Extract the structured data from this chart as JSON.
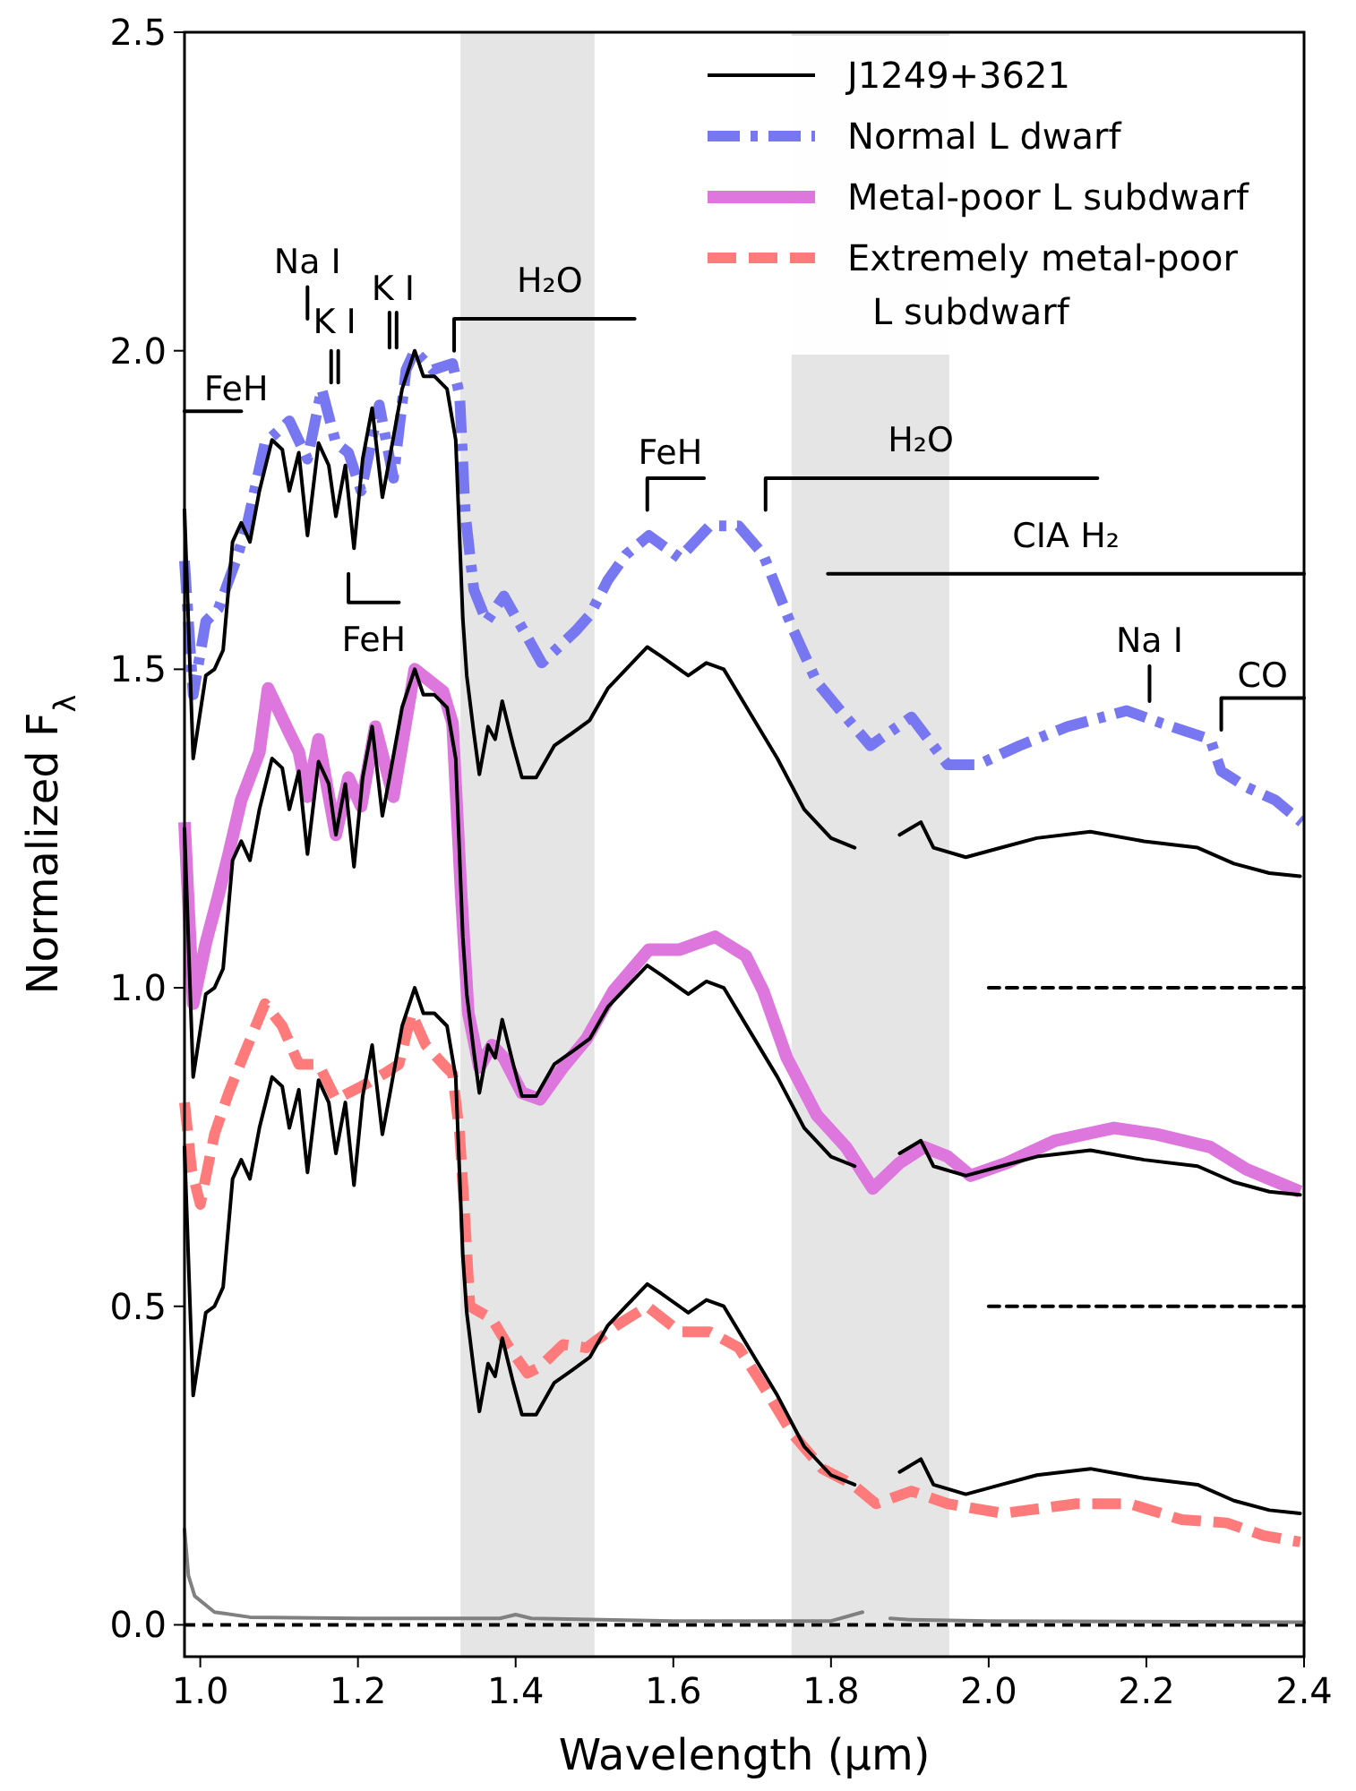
{
  "chart_data": {
    "type": "line",
    "xlabel": "Wavelength (μm)",
    "ylabel": "Normalized F$_{λ}$",
    "xlim": [
      0.98,
      2.4
    ],
    "ylim": [
      -0.05,
      2.5
    ],
    "xticks": [
      {
        "value": 1.0,
        "label": "1.0"
      },
      {
        "value": 1.2,
        "label": "1.2"
      },
      {
        "value": 1.4,
        "label": "1.4"
      },
      {
        "value": 1.6,
        "label": "1.6"
      },
      {
        "value": 1.8,
        "label": "1.8"
      },
      {
        "value": 2.0,
        "label": "2.0"
      },
      {
        "value": 2.2,
        "label": "2.2"
      },
      {
        "value": 2.4,
        "label": "2.4"
      }
    ],
    "yticks": [
      {
        "value": 0,
        "label": "0.0"
      },
      {
        "value": 0.5,
        "label": "0.5"
      },
      {
        "value": 1.0,
        "label": "1.0"
      },
      {
        "value": 1.5,
        "label": "1.5"
      },
      {
        "value": 2.0,
        "label": "2.0"
      },
      {
        "value": 2.5,
        "label": "2.5"
      }
    ],
    "grid": false,
    "legend": "top right",
    "line_style": "solid",
    "bands": [
      {
        "axis": "x",
        "from": 1.33,
        "to": 1.5,
        "color": "#e5e5e5"
      },
      {
        "axis": "x",
        "from": 1.75,
        "to": 1.95,
        "color": "#e5e5e5"
      }
    ],
    "ref_lines": [
      {
        "axis": "y",
        "value": 0,
        "color": "#000000",
        "line_style": "dashed"
      }
    ],
    "annotations": [
      "FeH",
      "Na I",
      "K I",
      "K I",
      "FeH",
      "H₂O",
      "FeH",
      "H₂O",
      "CIA H₂",
      "Na I",
      "CO"
    ],
    "series": [
      {
        "name": "J1249+3621",
        "color": "#000000",
        "x": [
          0.98,
          0.991,
          1.007,
          1.018,
          1.029,
          1.041,
          1.052,
          1.063,
          1.075,
          1.091,
          1.104,
          1.113,
          1.125,
          1.136,
          1.15,
          1.163,
          1.172,
          1.184,
          1.195,
          1.206,
          1.218,
          1.231,
          1.24,
          1.256,
          1.272,
          1.283,
          1.297,
          1.313,
          1.324,
          1.333,
          1.338,
          1.347,
          1.354,
          1.365,
          1.374,
          1.383,
          1.397,
          1.408,
          1.426,
          1.449,
          1.472,
          1.494,
          1.517,
          1.54,
          1.567,
          1.585,
          1.619,
          1.642,
          1.664,
          1.698,
          1.732,
          1.766,
          1.8,
          1.83,
          1.857,
          1.887,
          1.914,
          1.93,
          1.971,
          2.016,
          2.061,
          2.129,
          2.197,
          2.265,
          2.311,
          2.356,
          2.395
        ],
        "values": [
          1.75,
          1.36,
          1.49,
          1.5,
          1.53,
          1.7,
          1.73,
          1.7,
          1.78,
          1.86,
          1.845,
          1.78,
          1.84,
          1.71,
          1.855,
          1.82,
          1.74,
          1.82,
          1.69,
          1.83,
          1.91,
          1.77,
          1.83,
          1.94,
          2.0,
          1.96,
          1.96,
          1.94,
          1.86,
          1.58,
          1.49,
          1.4,
          1.335,
          1.41,
          1.39,
          1.45,
          1.38,
          1.33,
          1.33,
          1.38,
          1.4,
          1.42,
          1.47,
          1.5,
          1.535,
          1.52,
          1.49,
          1.51,
          1.5,
          1.43,
          1.36,
          1.28,
          1.235,
          1.22,
          null,
          1.24,
          1.26,
          1.22,
          1.205,
          1.22,
          1.235,
          1.245,
          1.23,
          1.22,
          1.195,
          1.18,
          1.175
        ]
      },
      {
        "name": "Normal L dwarf",
        "color": "#7777f2",
        "line_style": "dashdot",
        "x": [
          0.98,
          0.991,
          1.007,
          1.023,
          1.045,
          1.059,
          1.082,
          1.113,
          1.136,
          1.154,
          1.172,
          1.188,
          1.204,
          1.227,
          1.245,
          1.261,
          1.272,
          1.295,
          1.32,
          1.329,
          1.336,
          1.347,
          1.363,
          1.385,
          1.415,
          1.433,
          1.476,
          1.494,
          1.517,
          1.54,
          1.569,
          1.608,
          1.646,
          1.683,
          1.714,
          1.751,
          1.782,
          1.812,
          1.85,
          1.873,
          1.902,
          1.948,
          1.986,
          2.039,
          2.1,
          2.175,
          2.22,
          2.281,
          2.295,
          2.327,
          2.363,
          2.397
        ],
        "values": [
          1.67,
          1.46,
          1.575,
          1.595,
          1.67,
          1.725,
          1.855,
          1.89,
          1.83,
          1.94,
          1.855,
          1.84,
          1.78,
          1.915,
          1.8,
          1.97,
          2.0,
          1.97,
          1.98,
          1.93,
          1.745,
          1.625,
          1.575,
          1.615,
          1.55,
          1.51,
          1.56,
          1.585,
          1.64,
          1.68,
          1.71,
          1.675,
          1.725,
          1.725,
          1.68,
          1.565,
          1.48,
          1.435,
          1.38,
          1.4,
          1.425,
          1.35,
          1.35,
          1.38,
          1.41,
          1.435,
          1.415,
          1.39,
          1.34,
          1.315,
          1.295,
          1.26
        ]
      },
      {
        "name": "Metal-poor L subdwarf",
        "color": "#dd77dd",
        "x": [
          0.98,
          0.991,
          1.007,
          1.023,
          1.036,
          1.052,
          1.075,
          1.086,
          1.113,
          1.125,
          1.136,
          1.15,
          1.172,
          1.188,
          1.204,
          1.222,
          1.245,
          1.272,
          1.308,
          1.32,
          1.331,
          1.34,
          1.354,
          1.37,
          1.385,
          1.408,
          1.431,
          1.46,
          1.49,
          1.524,
          1.569,
          1.608,
          1.653,
          1.692,
          1.714,
          1.744,
          1.782,
          1.819,
          1.853,
          1.887,
          1.918,
          1.948,
          1.977,
          2.023,
          2.084,
          2.159,
          2.213,
          2.281,
          2.327,
          2.395
        ],
        "values": [
          1.26,
          0.975,
          1.07,
          1.145,
          1.21,
          1.295,
          1.37,
          1.47,
          1.4,
          1.37,
          1.3,
          1.39,
          1.24,
          1.33,
          1.285,
          1.41,
          1.3,
          1.5,
          1.465,
          1.415,
          1.145,
          0.96,
          0.875,
          0.91,
          0.89,
          0.835,
          0.825,
          0.875,
          0.92,
          0.995,
          1.06,
          1.06,
          1.08,
          1.05,
          0.995,
          0.89,
          0.8,
          0.75,
          0.685,
          0.725,
          0.75,
          0.735,
          0.705,
          0.725,
          0.76,
          0.78,
          0.77,
          0.75,
          0.715,
          0.68
        ]
      },
      {
        "name": "Extremely metal-poor\nL subdwarf",
        "color": "#ff7b7b",
        "line_style": "dashed",
        "x": [
          0.98,
          0.989,
          1.0,
          1.018,
          1.036,
          1.057,
          1.082,
          1.104,
          1.125,
          1.15,
          1.172,
          1.204,
          1.233,
          1.252,
          1.268,
          1.286,
          1.308,
          1.32,
          1.329,
          1.336,
          1.342,
          1.37,
          1.392,
          1.415,
          1.431,
          1.46,
          1.49,
          1.528,
          1.567,
          1.608,
          1.646,
          1.683,
          1.714,
          1.751,
          1.789,
          1.828,
          1.857,
          1.902,
          1.948,
          2.018,
          2.111,
          2.179,
          2.245,
          2.302,
          2.349,
          2.395
        ],
        "values": [
          0.82,
          0.715,
          0.66,
          0.77,
          0.835,
          0.9,
          0.975,
          0.94,
          0.88,
          0.88,
          0.825,
          0.845,
          0.865,
          0.88,
          0.96,
          0.91,
          0.88,
          0.865,
          0.77,
          0.63,
          0.5,
          0.48,
          0.435,
          0.395,
          0.405,
          0.44,
          0.435,
          0.47,
          0.5,
          0.46,
          0.46,
          0.435,
          0.375,
          0.3,
          0.245,
          0.22,
          0.19,
          0.21,
          0.19,
          0.175,
          0.19,
          0.19,
          0.165,
          0.16,
          0.14,
          0.13
        ]
      },
      {
        "color": "#000000",
        "x": [
          0.98,
          0.991,
          1.007,
          1.018,
          1.029,
          1.041,
          1.052,
          1.063,
          1.075,
          1.091,
          1.104,
          1.113,
          1.125,
          1.136,
          1.15,
          1.163,
          1.172,
          1.184,
          1.195,
          1.206,
          1.218,
          1.231,
          1.24,
          1.256,
          1.272,
          1.283,
          1.297,
          1.313,
          1.324,
          1.333,
          1.338,
          1.347,
          1.354,
          1.365,
          1.374,
          1.383,
          1.397,
          1.408,
          1.426,
          1.449,
          1.472,
          1.494,
          1.517,
          1.54,
          1.567,
          1.585,
          1.619,
          1.642,
          1.664,
          1.698,
          1.732,
          1.766,
          1.8,
          1.83,
          1.857,
          1.887,
          1.914,
          1.93,
          1.971,
          2.016,
          2.061,
          2.129,
          2.197,
          2.265,
          2.311,
          2.356,
          2.395
        ],
        "values": [
          1.25,
          0.86,
          0.99,
          1.0,
          1.03,
          1.2,
          1.23,
          1.2,
          1.28,
          1.36,
          1.345,
          1.28,
          1.34,
          1.21,
          1.355,
          1.32,
          1.24,
          1.32,
          1.19,
          1.33,
          1.41,
          1.27,
          1.33,
          1.44,
          1.5,
          1.46,
          1.46,
          1.44,
          1.36,
          1.08,
          0.99,
          0.9,
          0.835,
          0.91,
          0.89,
          0.95,
          0.88,
          0.83,
          0.83,
          0.88,
          0.9,
          0.92,
          0.97,
          1.0,
          1.035,
          1.02,
          0.99,
          1.01,
          1.0,
          0.93,
          0.86,
          0.78,
          0.735,
          0.72,
          null,
          0.74,
          0.76,
          0.72,
          0.705,
          0.72,
          0.735,
          0.745,
          0.73,
          0.72,
          0.695,
          0.68,
          0.675
        ]
      },
      {
        "color": "#000000",
        "x": [
          0.98,
          0.991,
          1.007,
          1.018,
          1.029,
          1.041,
          1.052,
          1.063,
          1.075,
          1.091,
          1.104,
          1.113,
          1.125,
          1.136,
          1.15,
          1.163,
          1.172,
          1.184,
          1.195,
          1.206,
          1.218,
          1.231,
          1.24,
          1.256,
          1.272,
          1.283,
          1.297,
          1.313,
          1.324,
          1.333,
          1.338,
          1.347,
          1.354,
          1.365,
          1.374,
          1.383,
          1.397,
          1.408,
          1.426,
          1.449,
          1.472,
          1.494,
          1.517,
          1.54,
          1.567,
          1.585,
          1.619,
          1.642,
          1.664,
          1.698,
          1.732,
          1.766,
          1.8,
          1.83,
          1.857,
          1.887,
          1.914,
          1.93,
          1.971,
          2.016,
          2.061,
          2.129,
          2.197,
          2.265,
          2.311,
          2.356,
          2.395
        ],
        "values": [
          0.75,
          0.36,
          0.49,
          0.5,
          0.53,
          0.7,
          0.73,
          0.7,
          0.78,
          0.86,
          0.845,
          0.78,
          0.84,
          0.71,
          0.855,
          0.82,
          0.74,
          0.82,
          0.69,
          0.83,
          0.91,
          0.77,
          0.83,
          0.94,
          1.0,
          0.96,
          0.96,
          0.94,
          0.86,
          0.58,
          0.49,
          0.4,
          0.335,
          0.41,
          0.39,
          0.45,
          0.38,
          0.33,
          0.33,
          0.38,
          0.4,
          0.42,
          0.47,
          0.5,
          0.535,
          0.52,
          0.49,
          0.51,
          0.5,
          0.43,
          0.36,
          0.28,
          0.235,
          0.22,
          null,
          0.24,
          0.26,
          0.22,
          0.205,
          0.22,
          0.235,
          0.245,
          0.23,
          0.22,
          0.195,
          0.18,
          0.175
        ]
      },
      {
        "color": "#808080",
        "x": [
          0.98,
          0.985,
          0.993,
          1.018,
          1.063,
          1.2,
          1.38,
          1.4,
          1.42,
          1.6,
          1.8,
          1.84,
          1.857,
          1.875,
          1.9,
          2.0,
          2.4
        ],
        "values": [
          0.15,
          0.077,
          0.045,
          0.02,
          0.012,
          0.01,
          0.01,
          0.016,
          0.01,
          0.006,
          0.006,
          0.02,
          null,
          0.01,
          0.008,
          0.006,
          0.004
        ]
      },
      {
        "color": "#000000",
        "line_style": "dashed",
        "x": [
          2.0,
          2.4
        ],
        "values": [
          1.0,
          1.0
        ]
      },
      {
        "color": "#000000",
        "line_style": "dashed",
        "x": [
          2.0,
          2.4
        ],
        "values": [
          0.5,
          0.5
        ]
      },
      {
        "color": "#000000",
        "x": [
          0.98,
          1.052
        ],
        "values": [
          1.905,
          1.905
        ]
      },
      {
        "color": "#000000",
        "x": [
          1.136,
          1.136
        ],
        "values": [
          2.05,
          2.1
        ]
      },
      {
        "color": "#000000",
        "x": [
          1.166,
          1.166
        ],
        "values": [
          1.95,
          2.0
        ]
      },
      {
        "color": "#000000",
        "x": [
          1.175,
          1.175
        ],
        "values": [
          1.95,
          2.0
        ]
      },
      {
        "color": "#000000",
        "x": [
          1.24,
          1.24
        ],
        "values": [
          2.005,
          2.06
        ]
      },
      {
        "color": "#000000",
        "x": [
          1.249,
          1.249
        ],
        "values": [
          2.005,
          2.06
        ]
      },
      {
        "color": "#000000",
        "x": [
          1.188,
          1.188,
          1.252
        ],
        "values": [
          1.65,
          1.605,
          1.605
        ]
      },
      {
        "color": "#000000",
        "x": [
          1.322,
          1.322,
          1.551
        ],
        "values": [
          2.0,
          2.05,
          2.05
        ]
      },
      {
        "color": "#000000",
        "x": [
          1.567,
          1.567,
          1.639
        ],
        "values": [
          1.75,
          1.8,
          1.8
        ]
      },
      {
        "color": "#000000",
        "x": [
          1.717,
          1.717,
          2.138
        ],
        "values": [
          1.75,
          1.8,
          1.8
        ]
      },
      {
        "color": "#000000",
        "x": [
          1.796,
          2.4
        ],
        "values": [
          1.65,
          1.65
        ]
      },
      {
        "color": "#000000",
        "x": [
          2.204,
          2.204
        ],
        "values": [
          1.45,
          1.505
        ]
      },
      {
        "color": "#000000",
        "x": [
          2.295,
          2.295,
          2.4
        ],
        "values": [
          1.405,
          1.455,
          1.455
        ]
      }
    ]
  }
}
